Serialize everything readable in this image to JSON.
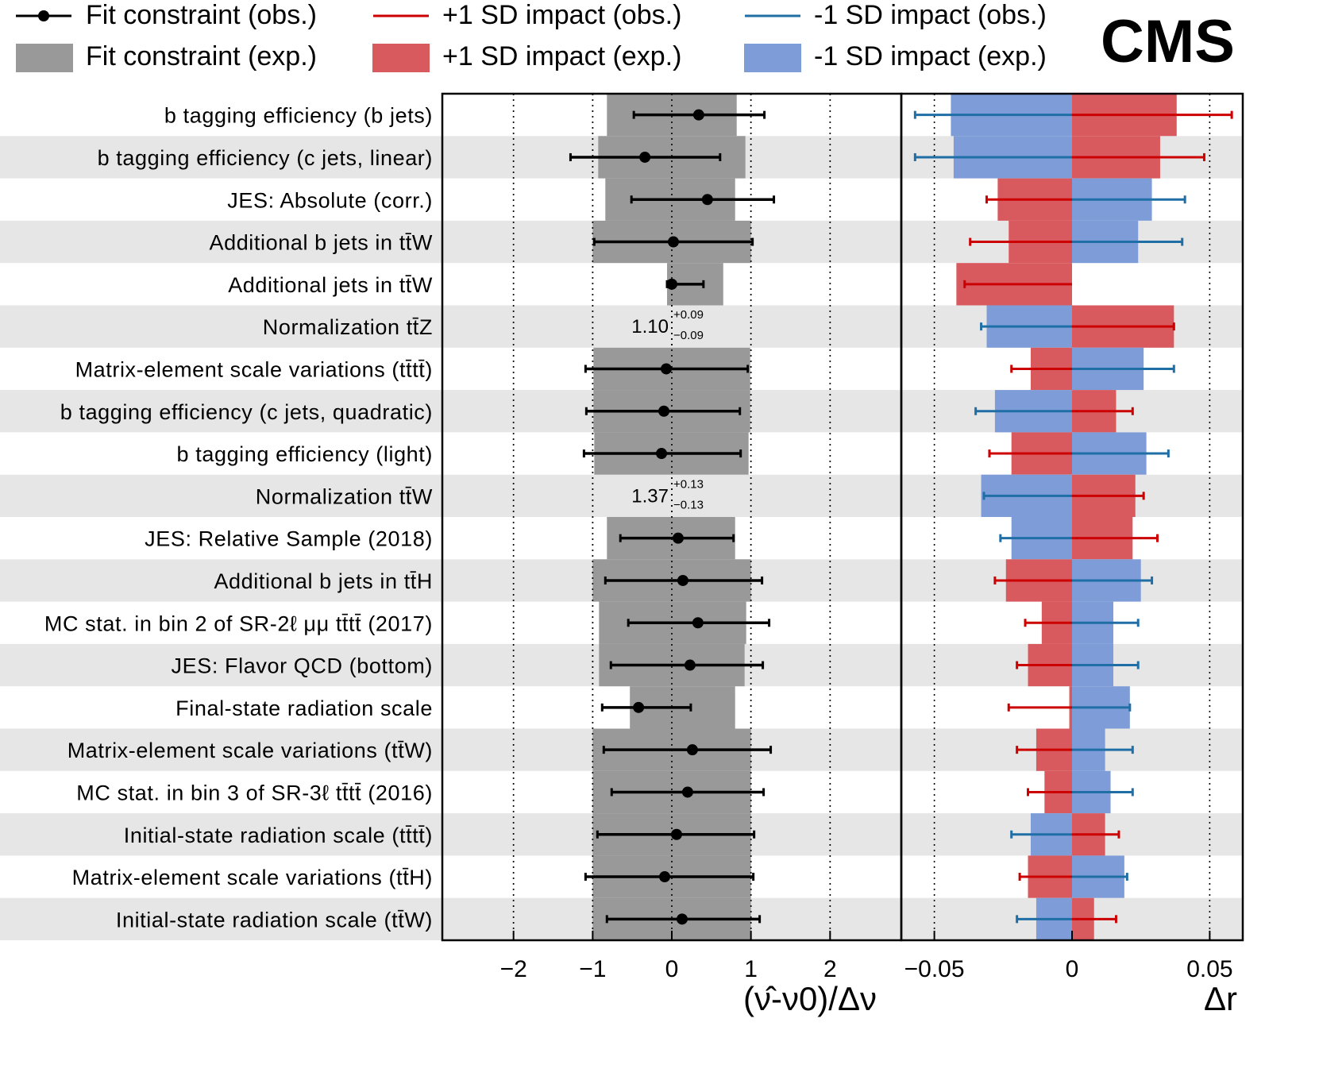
{
  "logo": "CMS",
  "legend": [
    {
      "label": "Fit constraint (obs.)",
      "kind": "marker-line",
      "color": "#000000"
    },
    {
      "label": "+1 SD impact (obs.)",
      "kind": "line",
      "color": "#cc0000"
    },
    {
      "label": "-1 SD impact (obs.)",
      "kind": "line",
      "color": "#1f6fa6"
    },
    {
      "label": "Fit constraint (exp.)",
      "kind": "box",
      "color": "#999999"
    },
    {
      "label": "+1 SD impact (exp.)",
      "kind": "box",
      "color": "#d85a5f"
    },
    {
      "label": "-1 SD impact (exp.)",
      "kind": "box",
      "color": "#7e9dd8"
    }
  ],
  "colors": {
    "stripe": "#e6e6e6",
    "constraint_band": "#999999",
    "plus_band": "#d85a5f",
    "minus_band": "#7e9dd8",
    "plus_line": "#cc0000",
    "minus_line": "#1f6fa6"
  },
  "chart_data": [
    {
      "type": "scatter",
      "panel": "pull",
      "xlabel": "(ν̂-ν0)/Δν",
      "xlim": [
        -2.9,
        2.9
      ],
      "xticks": [
        "−2",
        "−1",
        "0",
        "1",
        "2"
      ],
      "xtick_values": [
        -2,
        -1,
        0,
        1,
        2
      ],
      "grid": "dotted vertical lines at -2, -1, 0, 1, 2",
      "categories": [
        "b tagging efficiency (b jets)",
        "b tagging efficiency (c jets,  linear)",
        "JES: Absolute (corr.)",
        "Additional b jets in  tt̄W",
        "Additional jets in tt̄W",
        "Normalization tt̄Z",
        "Matrix-element scale variations (tt̄tt̄)",
        "b tagging efficiency (c jets,  quadratic)",
        "b tagging efficiency (light)",
        "Normalization tt̄W",
        "JES: Relative Sample (2018)",
        "Additional b jets in  tt̄H",
        "MC stat. in bin 2 of SR-2ℓ μμ tt̄tt̄ (2017)",
        "JES: Flavor QCD (bottom)",
        "Final-state radiation scale",
        "Matrix-element scale variations (tt̄W)",
        "MC stat. in bin 3 of SR-3ℓ tt̄tt̄ (2016)",
        "Initial-state radiation scale (tt̄tt̄)",
        "Matrix-element scale variations (tt̄H)",
        "Initial-state radiation scale (tt̄W)"
      ],
      "series": [
        {
          "name": "Fit constraint (obs.)",
          "values": [
            0.34,
            -0.34,
            0.45,
            0.02,
            0.0,
            null,
            -0.07,
            -0.1,
            -0.13,
            null,
            0.08,
            0.14,
            0.33,
            0.23,
            -0.42,
            0.26,
            0.2,
            0.06,
            -0.09,
            0.13
          ],
          "err_low": [
            0.82,
            0.94,
            0.96,
            1.0,
            0.06,
            null,
            1.02,
            0.98,
            0.98,
            null,
            0.73,
            0.98,
            0.88,
            1.0,
            0.46,
            1.12,
            0.96,
            1.0,
            1.0,
            0.95
          ],
          "err_high": [
            0.83,
            0.95,
            0.84,
            1.0,
            0.4,
            null,
            1.03,
            0.96,
            1.0,
            null,
            0.7,
            1.0,
            0.9,
            0.92,
            0.66,
            0.99,
            0.96,
            0.98,
            1.12,
            0.98
          ]
        },
        {
          "name": "Fit constraint (exp.)",
          "lower": [
            -0.82,
            -0.93,
            -0.84,
            -1.0,
            -0.06,
            null,
            -0.99,
            -0.99,
            -0.98,
            null,
            -0.82,
            -1.0,
            -0.92,
            -0.92,
            -0.53,
            -1.0,
            -1.0,
            -1.0,
            -1.0,
            -1.0
          ],
          "upper": [
            0.82,
            0.93,
            0.8,
            1.0,
            0.65,
            null,
            0.99,
            0.99,
            0.97,
            null,
            0.8,
            1.0,
            0.94,
            0.92,
            0.8,
            1.0,
            1.0,
            1.0,
            1.0,
            1.0
          ]
        }
      ],
      "annotations": [
        {
          "row": 5,
          "value": "1.10",
          "upper": "+0.09",
          "lower": "−0.09"
        },
        {
          "row": 9,
          "value": "1.37",
          "upper": "+0.13",
          "lower": "−0.13"
        }
      ]
    },
    {
      "type": "bar",
      "panel": "impact",
      "xlabel": "Δr",
      "xlim": [
        -0.062,
        0.062
      ],
      "xticks": [
        "−0.05",
        "0",
        "0.05"
      ],
      "xtick_values": [
        -0.05,
        0,
        0.05
      ],
      "grid": "dotted vertical lines at -0.05 and 0.05",
      "series": [
        {
          "name": "+1 SD impact (exp.)",
          "values": [
            0.038,
            0.032,
            -0.027,
            -0.023,
            -0.042,
            0.037,
            -0.015,
            0.016,
            -0.022,
            0.023,
            0.022,
            -0.024,
            -0.011,
            -0.016,
            -0.001,
            -0.013,
            -0.01,
            0.012,
            -0.016,
            0.008
          ]
        },
        {
          "name": "-1 SD impact (exp.)",
          "values": [
            -0.044,
            -0.043,
            0.029,
            0.024,
            0.0,
            -0.031,
            0.026,
            -0.028,
            0.027,
            -0.033,
            -0.022,
            0.025,
            0.015,
            0.015,
            0.021,
            0.012,
            0.014,
            -0.015,
            0.019,
            -0.013
          ]
        },
        {
          "name": "+1 SD impact (obs.)",
          "values": [
            0.058,
            0.048,
            -0.031,
            -0.037,
            -0.039,
            0.037,
            -0.022,
            0.022,
            -0.03,
            0.026,
            0.031,
            -0.028,
            -0.017,
            -0.02,
            -0.023,
            -0.02,
            -0.016,
            0.017,
            -0.019,
            0.016
          ]
        },
        {
          "name": "-1 SD impact (obs.)",
          "values": [
            -0.057,
            -0.057,
            0.041,
            0.04,
            null,
            -0.033,
            0.037,
            -0.035,
            0.035,
            -0.032,
            -0.026,
            0.029,
            0.024,
            0.024,
            0.021,
            0.022,
            0.022,
            -0.022,
            0.02,
            -0.02
          ]
        }
      ]
    }
  ]
}
